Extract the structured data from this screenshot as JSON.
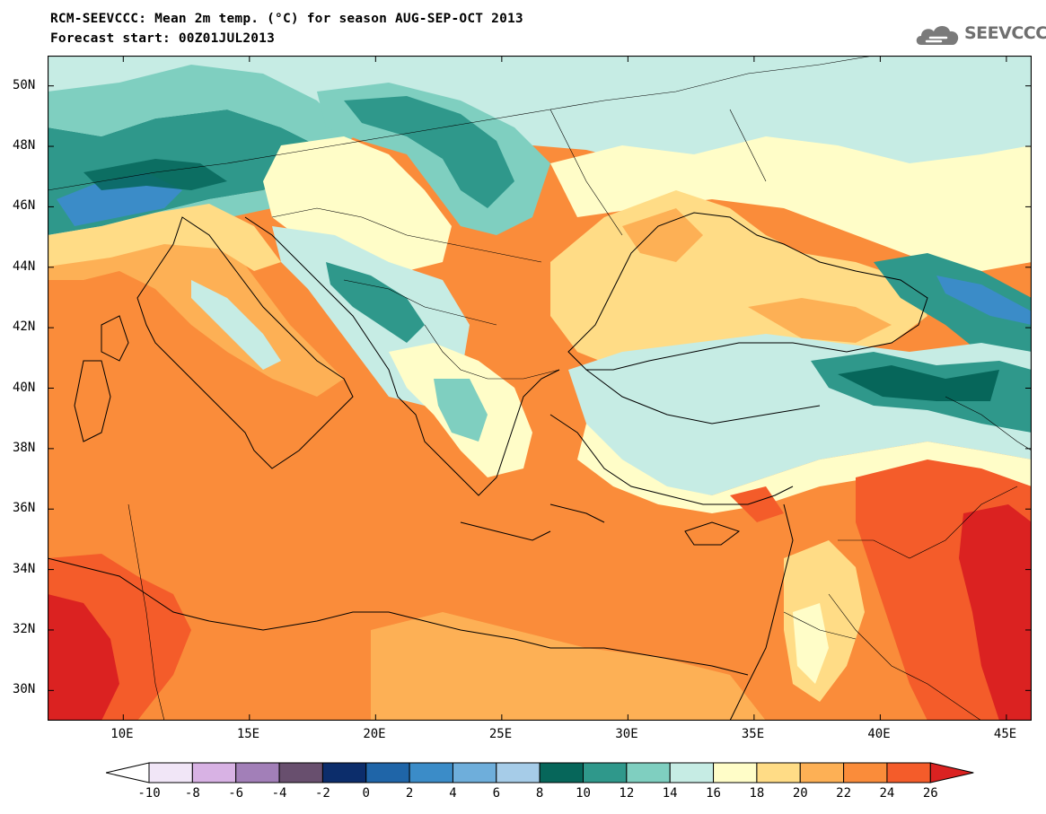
{
  "title": {
    "line1": "RCM-SEEVCCC: Mean 2m temp. (°C) for season AUG-SEP-OCT 2013",
    "line2": "Forecast start: 00Z01JUL2013"
  },
  "logo": {
    "text": "SEEVCCC",
    "icon": "cloud-icon"
  },
  "map": {
    "lon_range": [
      7,
      46
    ],
    "lat_range": [
      29,
      51
    ],
    "lat_labels": [
      "30N",
      "32N",
      "34N",
      "36N",
      "38N",
      "40N",
      "42N",
      "44N",
      "46N",
      "48N",
      "50N"
    ],
    "lon_labels": [
      "10E",
      "15E",
      "20E",
      "25E",
      "30E",
      "35E",
      "40E",
      "45E"
    ]
  },
  "colorbar": {
    "labels": [
      "-10",
      "-8",
      "-6",
      "-4",
      "-2",
      "0",
      "2",
      "4",
      "6",
      "8",
      "10",
      "12",
      "14",
      "16",
      "18",
      "20",
      "22",
      "24",
      "26"
    ],
    "colors": [
      "#ffffff",
      "#f1e6f7",
      "#d8b2e4",
      "#a27fb8",
      "#684f6e",
      "#0c2d6b",
      "#1f65a8",
      "#3b8cc8",
      "#6eaedb",
      "#a6cce8",
      "#06665a",
      "#2f988b",
      "#7fcfc0",
      "#c6ece4",
      "#fffdc8",
      "#ffdc86",
      "#fdb055",
      "#fa8c3a",
      "#f45c2a",
      "#db2221"
    ],
    "units": "°C"
  }
}
